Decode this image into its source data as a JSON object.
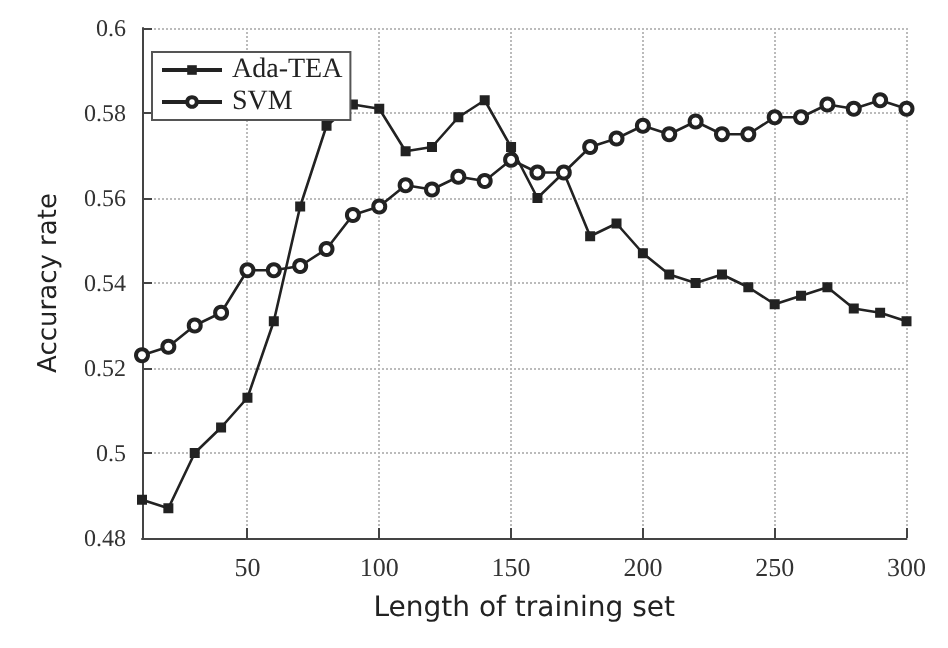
{
  "chart_data": {
    "type": "line",
    "xlabel": "Length of training set",
    "ylabel": "Accuracy rate",
    "x": [
      10,
      20,
      30,
      40,
      50,
      60,
      70,
      80,
      90,
      100,
      110,
      120,
      130,
      140,
      150,
      160,
      170,
      180,
      190,
      200,
      210,
      220,
      230,
      240,
      250,
      260,
      270,
      280,
      290,
      300
    ],
    "xlim": [
      10,
      300
    ],
    "xticks": [
      50,
      100,
      150,
      200,
      250,
      300
    ],
    "ylim": [
      0.48,
      0.6
    ],
    "yticks": [
      0.48,
      0.5,
      0.52,
      0.54,
      0.56,
      0.58,
      0.6
    ],
    "grid": true,
    "legend": "top left",
    "line_style": "solid",
    "series": [
      {
        "name": "Ada-TEA",
        "color": "#222222",
        "marker": "square",
        "values": [
          0.489,
          0.487,
          0.5,
          0.506,
          0.513,
          0.531,
          0.558,
          0.577,
          0.582,
          0.581,
          0.571,
          0.572,
          0.579,
          0.583,
          0.572,
          0.56,
          0.566,
          0.551,
          0.554,
          0.547,
          0.542,
          0.54,
          0.542,
          0.539,
          0.535,
          0.537,
          0.539,
          0.534,
          0.533,
          0.531
        ]
      },
      {
        "name": "SVM",
        "color": "#222222",
        "marker": "circle",
        "values": [
          0.523,
          0.525,
          0.53,
          0.533,
          0.543,
          0.543,
          0.544,
          0.548,
          0.556,
          0.558,
          0.563,
          0.562,
          0.565,
          0.564,
          0.569,
          0.566,
          0.566,
          0.572,
          0.574,
          0.577,
          0.575,
          0.578,
          0.575,
          0.575,
          0.579,
          0.579,
          0.582,
          0.581,
          0.583,
          0.581
        ]
      }
    ]
  }
}
